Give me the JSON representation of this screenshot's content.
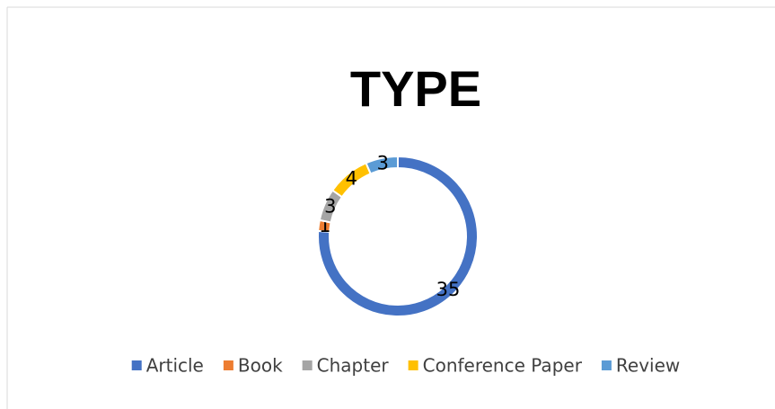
{
  "chart_data": {
    "type": "donut",
    "title": "TYPE",
    "categories": [
      "Article",
      "Book",
      "Chapter",
      "Conference Paper",
      "Review"
    ],
    "values": [
      35,
      1,
      3,
      4,
      3
    ],
    "colors": [
      "#4472c4",
      "#ed7d31",
      "#a5a5a5",
      "#ffc000",
      "#5b9bd5"
    ],
    "legend": "bottom"
  }
}
